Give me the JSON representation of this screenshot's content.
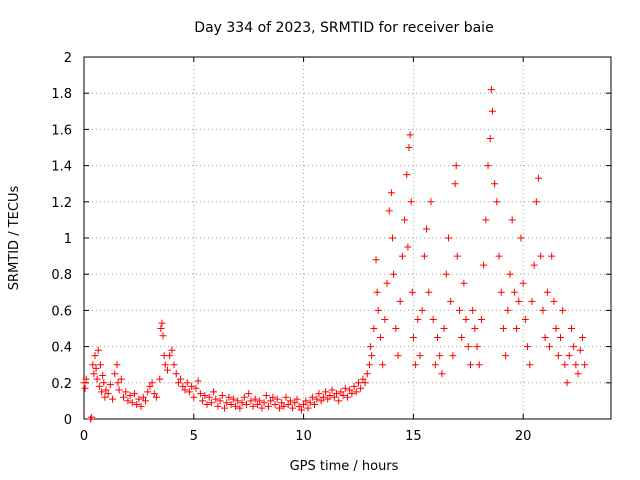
{
  "chart_data": {
    "type": "scatter",
    "title": "Day 334 of 2023, SRMTID for receiver baie",
    "xlabel": "GPS time / hours",
    "ylabel": "SRMTID / TECUs",
    "xlim": [
      0,
      24
    ],
    "ylim": [
      0,
      2
    ],
    "xticks": [
      0,
      5,
      10,
      15,
      20
    ],
    "yticks": [
      0,
      0.2,
      0.4,
      0.6,
      0.8,
      1,
      1.2,
      1.4,
      1.6,
      1.8,
      2
    ],
    "xtick_labels": [
      "0",
      "5",
      "10",
      "15",
      "20"
    ],
    "ytick_labels": [
      "0",
      "0.2",
      "0.4",
      "0.6",
      "0.8",
      "1",
      "1.2",
      "1.4",
      "1.6",
      "1.8",
      "2"
    ],
    "grid": true,
    "marker": "+",
    "color": "#ff0000",
    "series": [
      {
        "name": "SRMTID",
        "points": [
          [
            0.0,
            0.2
          ],
          [
            0.05,
            0.17
          ],
          [
            0.1,
            0.22
          ],
          [
            0.3,
            0.0
          ],
          [
            0.35,
            0.01
          ],
          [
            0.4,
            0.3
          ],
          [
            0.45,
            0.25
          ],
          [
            0.5,
            0.35
          ],
          [
            0.55,
            0.28
          ],
          [
            0.6,
            0.22
          ],
          [
            0.65,
            0.38
          ],
          [
            0.7,
            0.18
          ],
          [
            0.75,
            0.3
          ],
          [
            0.8,
            0.15
          ],
          [
            0.85,
            0.24
          ],
          [
            0.9,
            0.2
          ],
          [
            0.95,
            0.12
          ],
          [
            1.0,
            0.16
          ],
          [
            1.1,
            0.14
          ],
          [
            1.2,
            0.19
          ],
          [
            1.3,
            0.11
          ],
          [
            1.4,
            0.25
          ],
          [
            1.5,
            0.3
          ],
          [
            1.55,
            0.2
          ],
          [
            1.6,
            0.16
          ],
          [
            1.7,
            0.22
          ],
          [
            1.8,
            0.12
          ],
          [
            1.9,
            0.15
          ],
          [
            2.0,
            0.1
          ],
          [
            2.1,
            0.13
          ],
          [
            2.2,
            0.09
          ],
          [
            2.3,
            0.14
          ],
          [
            2.4,
            0.08
          ],
          [
            2.5,
            0.11
          ],
          [
            2.6,
            0.07
          ],
          [
            2.7,
            0.12
          ],
          [
            2.8,
            0.1
          ],
          [
            2.9,
            0.15
          ],
          [
            3.0,
            0.18
          ],
          [
            3.1,
            0.2
          ],
          [
            3.2,
            0.14
          ],
          [
            3.3,
            0.12
          ],
          [
            3.45,
            0.22
          ],
          [
            3.5,
            0.5
          ],
          [
            3.55,
            0.53
          ],
          [
            3.6,
            0.46
          ],
          [
            3.65,
            0.35
          ],
          [
            3.7,
            0.3
          ],
          [
            3.8,
            0.27
          ],
          [
            3.9,
            0.35
          ],
          [
            4.0,
            0.38
          ],
          [
            4.1,
            0.3
          ],
          [
            4.2,
            0.25
          ],
          [
            4.3,
            0.2
          ],
          [
            4.4,
            0.22
          ],
          [
            4.5,
            0.18
          ],
          [
            4.6,
            0.16
          ],
          [
            4.7,
            0.2
          ],
          [
            4.8,
            0.15
          ],
          [
            4.9,
            0.18
          ],
          [
            5.0,
            0.12
          ],
          [
            5.1,
            0.17
          ],
          [
            5.2,
            0.21
          ],
          [
            5.3,
            0.14
          ],
          [
            5.4,
            0.1
          ],
          [
            5.5,
            0.13
          ],
          [
            5.6,
            0.08
          ],
          [
            5.7,
            0.12
          ],
          [
            5.8,
            0.09
          ],
          [
            5.9,
            0.15
          ],
          [
            6.0,
            0.11
          ],
          [
            6.1,
            0.07
          ],
          [
            6.2,
            0.1
          ],
          [
            6.3,
            0.13
          ],
          [
            6.4,
            0.06
          ],
          [
            6.5,
            0.09
          ],
          [
            6.6,
            0.12
          ],
          [
            6.7,
            0.08
          ],
          [
            6.8,
            0.11
          ],
          [
            6.9,
            0.07
          ],
          [
            7.0,
            0.1
          ],
          [
            7.1,
            0.06
          ],
          [
            7.2,
            0.09
          ],
          [
            7.3,
            0.12
          ],
          [
            7.4,
            0.08
          ],
          [
            7.5,
            0.14
          ],
          [
            7.6,
            0.1
          ],
          [
            7.7,
            0.07
          ],
          [
            7.8,
            0.11
          ],
          [
            7.9,
            0.08
          ],
          [
            8.0,
            0.1
          ],
          [
            8.1,
            0.06
          ],
          [
            8.2,
            0.09
          ],
          [
            8.3,
            0.13
          ],
          [
            8.4,
            0.07
          ],
          [
            8.5,
            0.1
          ],
          [
            8.6,
            0.12
          ],
          [
            8.7,
            0.08
          ],
          [
            8.8,
            0.11
          ],
          [
            8.9,
            0.06
          ],
          [
            9.0,
            0.09
          ],
          [
            9.1,
            0.07
          ],
          [
            9.2,
            0.12
          ],
          [
            9.3,
            0.08
          ],
          [
            9.4,
            0.1
          ],
          [
            9.5,
            0.06
          ],
          [
            9.6,
            0.09
          ],
          [
            9.7,
            0.11
          ],
          [
            9.8,
            0.07
          ],
          [
            9.9,
            0.05
          ],
          [
            10.0,
            0.08
          ],
          [
            10.1,
            0.1
          ],
          [
            10.2,
            0.06
          ],
          [
            10.3,
            0.09
          ],
          [
            10.4,
            0.12
          ],
          [
            10.5,
            0.08
          ],
          [
            10.6,
            0.11
          ],
          [
            10.7,
            0.14
          ],
          [
            10.8,
            0.1
          ],
          [
            10.9,
            0.12
          ],
          [
            11.0,
            0.15
          ],
          [
            11.1,
            0.11
          ],
          [
            11.2,
            0.13
          ],
          [
            11.3,
            0.16
          ],
          [
            11.4,
            0.12
          ],
          [
            11.5,
            0.14
          ],
          [
            11.6,
            0.1
          ],
          [
            11.7,
            0.15
          ],
          [
            11.8,
            0.13
          ],
          [
            11.9,
            0.17
          ],
          [
            12.0,
            0.12
          ],
          [
            12.1,
            0.16
          ],
          [
            12.2,
            0.14
          ],
          [
            12.3,
            0.18
          ],
          [
            12.4,
            0.15
          ],
          [
            12.5,
            0.2
          ],
          [
            12.6,
            0.17
          ],
          [
            12.7,
            0.22
          ],
          [
            12.8,
            0.2
          ],
          [
            12.9,
            0.25
          ],
          [
            13.0,
            0.3
          ],
          [
            13.05,
            0.4
          ],
          [
            13.1,
            0.35
          ],
          [
            13.2,
            0.5
          ],
          [
            13.3,
            0.88
          ],
          [
            13.35,
            0.7
          ],
          [
            13.4,
            0.6
          ],
          [
            13.5,
            0.45
          ],
          [
            13.6,
            0.3
          ],
          [
            13.7,
            0.55
          ],
          [
            13.8,
            0.75
          ],
          [
            13.9,
            1.15
          ],
          [
            14.0,
            1.25
          ],
          [
            14.05,
            1.0
          ],
          [
            14.1,
            0.8
          ],
          [
            14.2,
            0.5
          ],
          [
            14.3,
            0.35
          ],
          [
            14.4,
            0.65
          ],
          [
            14.5,
            0.9
          ],
          [
            14.6,
            1.1
          ],
          [
            14.7,
            1.35
          ],
          [
            14.75,
            0.95
          ],
          [
            14.8,
            1.5
          ],
          [
            14.85,
            1.57
          ],
          [
            14.9,
            1.2
          ],
          [
            14.95,
            0.7
          ],
          [
            15.0,
            0.45
          ],
          [
            15.1,
            0.3
          ],
          [
            15.2,
            0.55
          ],
          [
            15.3,
            0.35
          ],
          [
            15.4,
            0.6
          ],
          [
            15.5,
            0.9
          ],
          [
            15.6,
            1.05
          ],
          [
            15.7,
            0.7
          ],
          [
            15.8,
            1.2
          ],
          [
            15.9,
            0.55
          ],
          [
            16.0,
            0.3
          ],
          [
            16.1,
            0.45
          ],
          [
            16.2,
            0.35
          ],
          [
            16.3,
            0.25
          ],
          [
            16.4,
            0.5
          ],
          [
            16.5,
            0.8
          ],
          [
            16.6,
            1.0
          ],
          [
            16.7,
            0.65
          ],
          [
            16.8,
            0.35
          ],
          [
            16.9,
            1.3
          ],
          [
            16.95,
            1.4
          ],
          [
            17.0,
            0.9
          ],
          [
            17.1,
            0.6
          ],
          [
            17.2,
            0.45
          ],
          [
            17.3,
            0.75
          ],
          [
            17.4,
            0.55
          ],
          [
            17.5,
            0.4
          ],
          [
            17.6,
            0.3
          ],
          [
            17.7,
            0.6
          ],
          [
            17.8,
            0.5
          ],
          [
            17.9,
            0.4
          ],
          [
            18.0,
            0.3
          ],
          [
            18.1,
            0.55
          ],
          [
            18.2,
            0.85
          ],
          [
            18.3,
            1.1
          ],
          [
            18.4,
            1.4
          ],
          [
            18.5,
            1.55
          ],
          [
            18.55,
            1.82
          ],
          [
            18.6,
            1.7
          ],
          [
            18.7,
            1.3
          ],
          [
            18.8,
            1.2
          ],
          [
            18.9,
            0.9
          ],
          [
            19.0,
            0.7
          ],
          [
            19.1,
            0.5
          ],
          [
            19.2,
            0.35
          ],
          [
            19.3,
            0.6
          ],
          [
            19.4,
            0.8
          ],
          [
            19.5,
            1.1
          ],
          [
            19.6,
            0.7
          ],
          [
            19.7,
            0.5
          ],
          [
            19.8,
            0.65
          ],
          [
            19.9,
            1.0
          ],
          [
            20.0,
            0.75
          ],
          [
            20.1,
            0.55
          ],
          [
            20.2,
            0.4
          ],
          [
            20.3,
            0.3
          ],
          [
            20.4,
            0.65
          ],
          [
            20.5,
            0.85
          ],
          [
            20.6,
            1.2
          ],
          [
            20.7,
            1.33
          ],
          [
            20.8,
            0.9
          ],
          [
            20.9,
            0.6
          ],
          [
            21.0,
            0.45
          ],
          [
            21.1,
            0.7
          ],
          [
            21.2,
            0.4
          ],
          [
            21.3,
            0.9
          ],
          [
            21.4,
            0.65
          ],
          [
            21.5,
            0.5
          ],
          [
            21.6,
            0.35
          ],
          [
            21.7,
            0.45
          ],
          [
            21.8,
            0.6
          ],
          [
            21.9,
            0.3
          ],
          [
            22.0,
            0.2
          ],
          [
            22.1,
            0.35
          ],
          [
            22.2,
            0.5
          ],
          [
            22.3,
            0.4
          ],
          [
            22.4,
            0.3
          ],
          [
            22.5,
            0.25
          ],
          [
            22.6,
            0.38
          ],
          [
            22.7,
            0.45
          ],
          [
            22.8,
            0.3
          ]
        ]
      }
    ]
  }
}
